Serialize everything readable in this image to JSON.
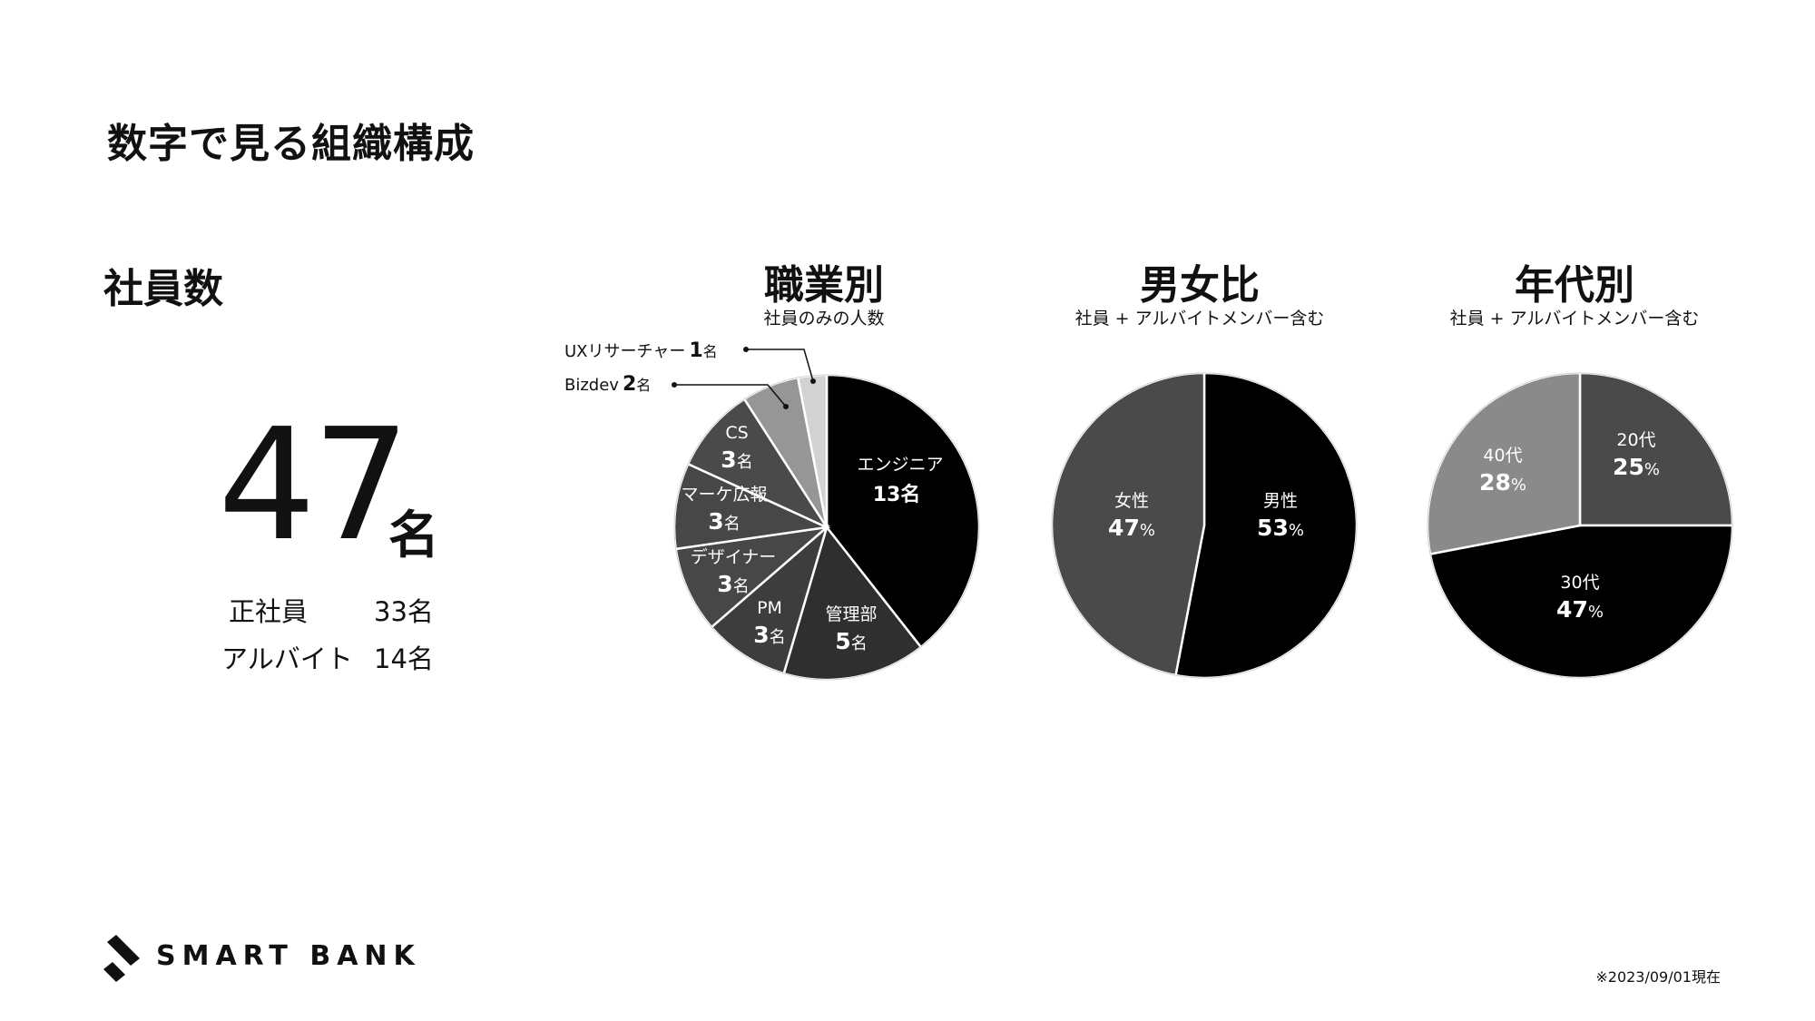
{
  "page": {
    "title": "数字で見る組織構成"
  },
  "employees": {
    "heading": "社員数",
    "total_number": "47",
    "total_unit": "名",
    "breakdown": [
      {
        "label": "正社員",
        "value": "33名"
      },
      {
        "label": "アルバイト",
        "value": "14名"
      }
    ]
  },
  "chart_data": [
    {
      "type": "pie",
      "title": "職業別",
      "subtitle": "社員のみの人数",
      "unit": "名",
      "slices": [
        {
          "label": "エンジニア",
          "value": 13,
          "color": "#000000"
        },
        {
          "label": "管理部",
          "value": 5,
          "color": "#2f2f2f"
        },
        {
          "label": "PM",
          "value": 3,
          "color": "#3d3d3d"
        },
        {
          "label": "デザイナー",
          "value": 3,
          "color": "#474747"
        },
        {
          "label": "マーケ広報",
          "value": 3,
          "color": "#474747"
        },
        {
          "label": "CS",
          "value": 3,
          "color": "#4a4a4a"
        },
        {
          "label": "Bizdev",
          "value": 2,
          "color": "#969696"
        },
        {
          "label": "UXリサーチャー",
          "value": 1,
          "color": "#d2d2d2"
        }
      ]
    },
    {
      "type": "pie",
      "title": "男女比",
      "subtitle": "社員 + アルバイトメンバー含む",
      "unit": "%",
      "slices": [
        {
          "label": "男性",
          "value": 53,
          "color": "#000000"
        },
        {
          "label": "女性",
          "value": 47,
          "color": "#4a4a4a"
        }
      ]
    },
    {
      "type": "pie",
      "title": "年代別",
      "subtitle": "社員 + アルバイトメンバー含む",
      "unit": "%",
      "slices": [
        {
          "label": "20代",
          "value": 25,
          "color": "#4a4a4a"
        },
        {
          "label": "30代",
          "value": 47,
          "color": "#000000"
        },
        {
          "label": "40代",
          "value": 28,
          "color": "#8a8a8a"
        }
      ]
    }
  ],
  "footer": {
    "logo_text": "SMART BANK",
    "date_note": "※2023/09/01現在"
  }
}
